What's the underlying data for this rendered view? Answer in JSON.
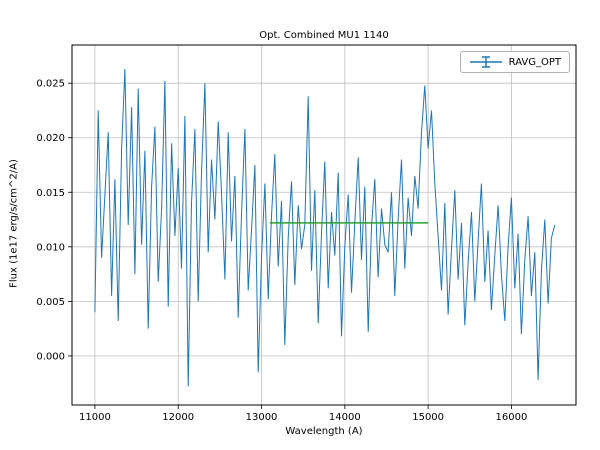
{
  "chart_data": {
    "type": "line",
    "title": "Opt. Combined MU1 1140",
    "xlabel": "Wavelength (A)",
    "ylabel": "Flux (1e17 erg/s/cm^2/A)",
    "xlim": [
      10725,
      16775
    ],
    "ylim": [
      -0.0045,
      0.0285
    ],
    "x_ticks": [
      11000,
      12000,
      13000,
      14000,
      15000,
      16000
    ],
    "y_ticks": [
      0.0,
      0.005,
      0.01,
      0.015,
      0.02,
      0.025
    ],
    "grid": true,
    "grid_color": "#c0c0c0",
    "legend": {
      "position": "upper right",
      "entries": [
        {
          "label": "RAVG_OPT",
          "color": "#1f77b4",
          "style": "errorbar-line"
        }
      ]
    },
    "series": [
      {
        "name": "RAVG_OPT",
        "color": "#1f77b4",
        "x_start": 11000,
        "x_step": 40,
        "values": [
          0.004,
          0.0225,
          0.009,
          0.0148,
          0.0205,
          0.0055,
          0.0162,
          0.0032,
          0.019,
          0.0263,
          0.012,
          0.0228,
          0.0075,
          0.0245,
          0.0102,
          0.0188,
          0.0025,
          0.0155,
          0.021,
          0.0068,
          0.0135,
          0.0252,
          0.0045,
          0.0195,
          0.011,
          0.0172,
          0.008,
          0.022,
          -0.0028,
          0.014,
          0.0208,
          0.005,
          0.0168,
          0.025,
          0.0095,
          0.018,
          0.0125,
          0.0215,
          0.015,
          0.007,
          0.0205,
          0.0105,
          0.0165,
          0.0035,
          0.013,
          0.0208,
          0.006,
          0.0115,
          0.0175,
          -0.0015,
          0.009,
          0.0158,
          0.0052,
          0.0128,
          0.0185,
          0.0082,
          0.0142,
          0.001,
          0.0108,
          0.016,
          0.0065,
          0.0138,
          0.0098,
          0.012,
          0.0238,
          0.0078,
          0.0152,
          0.003,
          0.0112,
          0.0178,
          0.0062,
          0.0132,
          0.0092,
          0.0168,
          0.0018,
          0.01,
          0.0148,
          0.0058,
          0.0122,
          0.0182,
          0.0088,
          0.0155,
          0.0022,
          0.0118,
          0.0162,
          0.0072,
          0.0135,
          0.0102,
          0.0095,
          0.015,
          0.0055,
          0.0125,
          0.018,
          0.008,
          0.0145,
          0.011,
          0.0165,
          0.0135,
          0.0205,
          0.0248,
          0.019,
          0.0225,
          0.0158,
          0.011,
          0.006,
          0.014,
          0.0038,
          0.0098,
          0.0152,
          0.007,
          0.0122,
          0.0028,
          0.0085,
          0.0132,
          0.005,
          0.0105,
          0.0158,
          0.0068,
          0.0115,
          0.0042,
          0.0092,
          0.0138,
          0.0075,
          0.0032,
          0.01,
          0.0145,
          0.0062,
          0.0112,
          0.002,
          0.0088,
          0.0128,
          0.0055,
          0.0095,
          -0.0022,
          0.0078,
          0.0125,
          0.0048,
          0.0108,
          0.012
        ]
      }
    ],
    "avg_line": {
      "name": "running-average-segment",
      "color": "#2ca02c",
      "y": 0.0122,
      "x_start": 13100,
      "x_end": 15000
    }
  }
}
